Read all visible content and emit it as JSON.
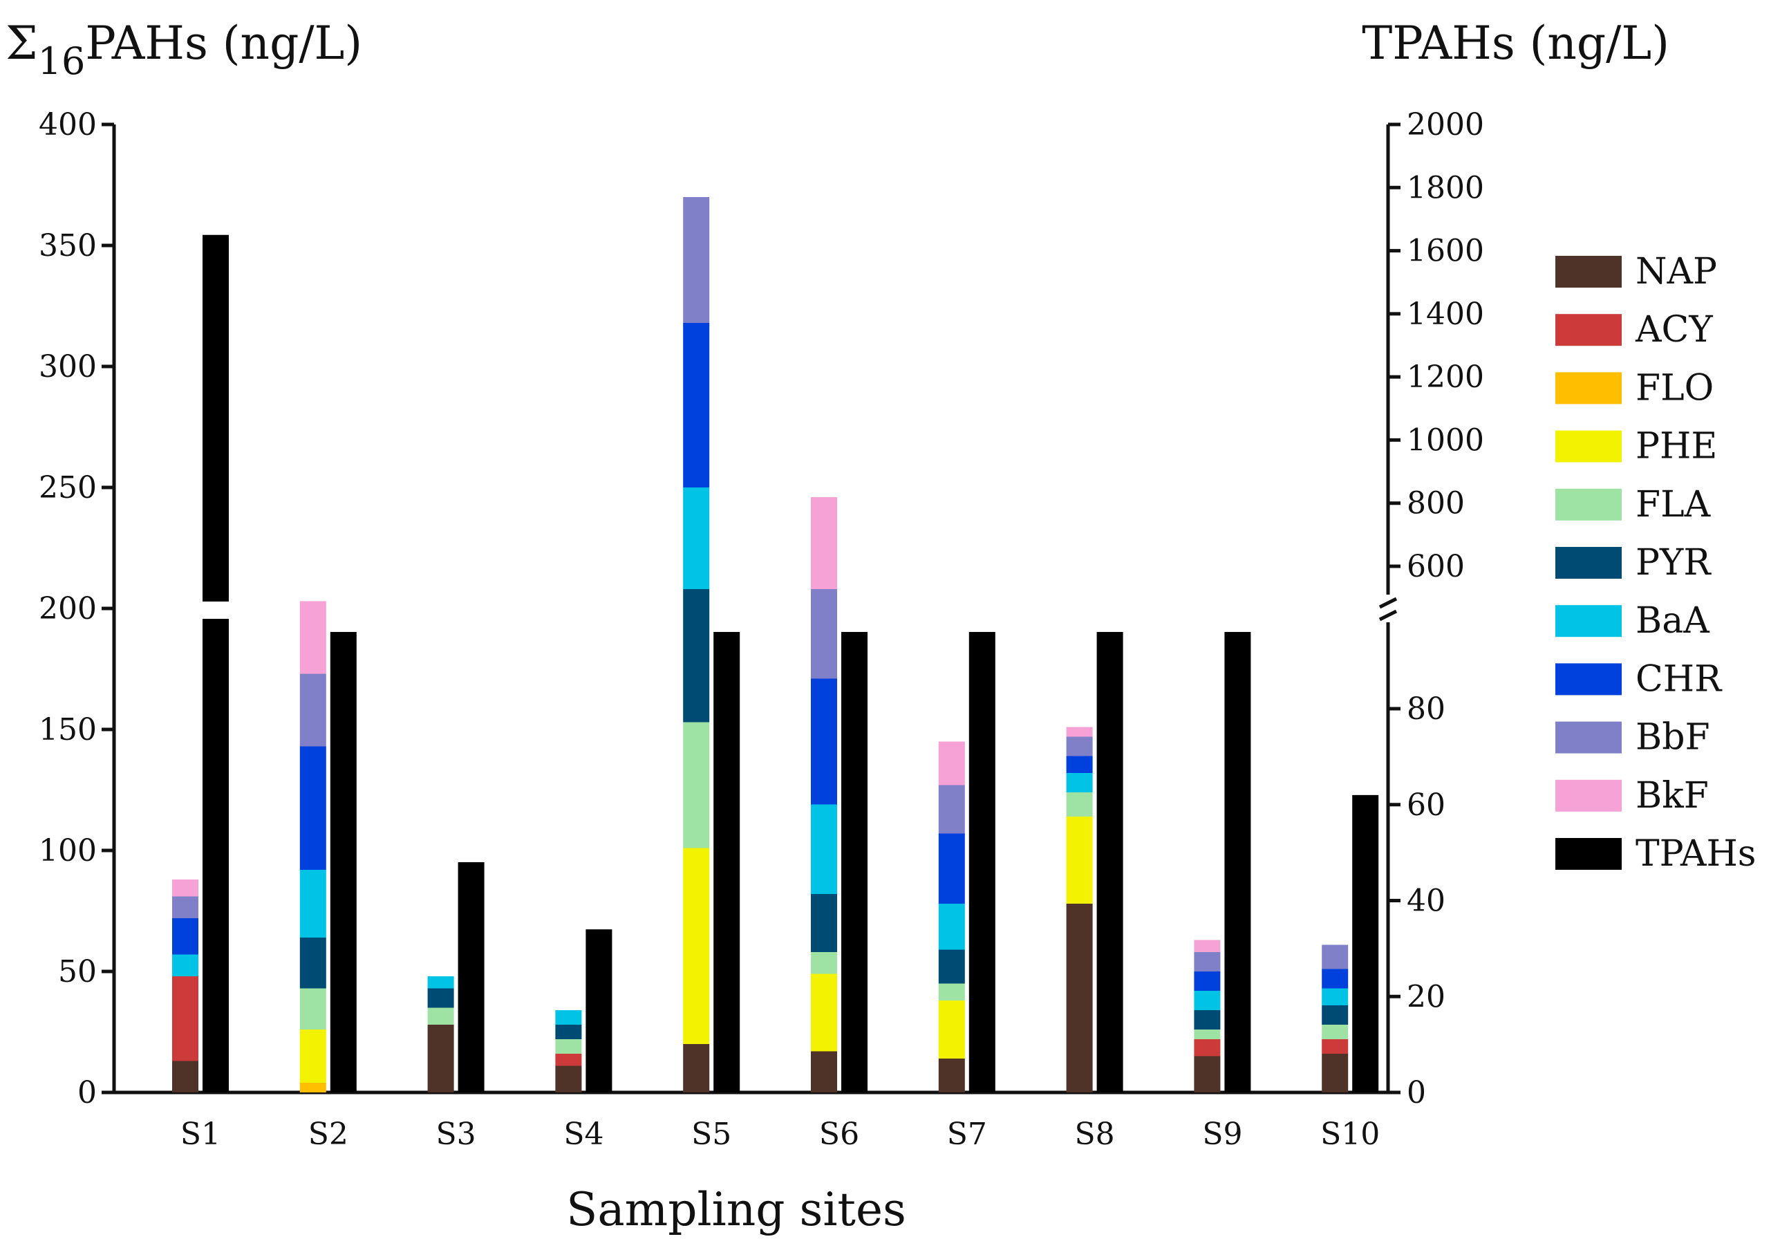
{
  "chart_data": {
    "type": "bar",
    "stacked": true,
    "title": "",
    "xlabel": "Sampling sites",
    "ylabel_left_prefix": "Σ",
    "ylabel_left_sub": "16",
    "ylabel_left_main": "PAHs (ng/L)",
    "ylabel_right": "TPAHs (ng/L)",
    "ylim_left": [
      0,
      400
    ],
    "left_ticks": [
      "0",
      "50",
      "100",
      "150",
      "200",
      "250",
      "300",
      "350",
      "400"
    ],
    "right_ticks_lower": [
      "0",
      "20",
      "40",
      "60",
      "80"
    ],
    "right_ticks_upper": [
      "600",
      "800",
      "1000",
      "1200",
      "1400",
      "1600",
      "1800",
      "2000"
    ],
    "right_axis_break": "between 96 and 520",
    "categories": [
      "S1",
      "S2",
      "S3",
      "S4",
      "S5",
      "S6",
      "S7",
      "S8",
      "S9",
      "S10"
    ],
    "series": [
      {
        "name": "NAP",
        "color": "#4f3328",
        "values": [
          13,
          0,
          28,
          11,
          20,
          17,
          14,
          78,
          15,
          16
        ]
      },
      {
        "name": "ACY",
        "color": "#cc3a3a",
        "values": [
          35,
          0,
          0,
          5,
          0,
          0,
          0,
          0,
          7,
          6
        ]
      },
      {
        "name": "FLO",
        "color": "#ffbe00",
        "values": [
          0,
          4,
          0,
          0,
          0,
          0,
          0,
          0,
          0,
          0
        ]
      },
      {
        "name": "PHE",
        "color": "#f3f200",
        "values": [
          0,
          22,
          0,
          0,
          81,
          32,
          24,
          36,
          0,
          0
        ]
      },
      {
        "name": "FLA",
        "color": "#9ee3a3",
        "values": [
          0,
          17,
          7,
          6,
          52,
          9,
          7,
          10,
          4,
          6
        ]
      },
      {
        "name": "PYR",
        "color": "#004b73",
        "values": [
          0,
          21,
          8,
          6,
          55,
          24,
          14,
          0,
          8,
          8
        ]
      },
      {
        "name": "BaA",
        "color": "#00c3e6",
        "values": [
          9,
          28,
          5,
          6,
          42,
          37,
          19,
          8,
          8,
          7
        ]
      },
      {
        "name": "CHR",
        "color": "#0040dd",
        "values": [
          15,
          51,
          0,
          0,
          68,
          52,
          29,
          7,
          8,
          8
        ]
      },
      {
        "name": "BbF",
        "color": "#8080c8",
        "values": [
          9,
          30,
          0,
          0,
          52,
          37,
          20,
          8,
          8,
          10
        ]
      },
      {
        "name": "BkF",
        "color": "#f7a2d6",
        "values": [
          7,
          30,
          0,
          0,
          0,
          38,
          18,
          4,
          5,
          0
        ]
      }
    ],
    "tpahs": {
      "name": "TPAHs",
      "color": "#000000",
      "values": [
        1650,
        96,
        48,
        34,
        96,
        96,
        96,
        96,
        96,
        62
      ],
      "note": "bars S2, S5-S9 reach the right-axis break"
    }
  }
}
